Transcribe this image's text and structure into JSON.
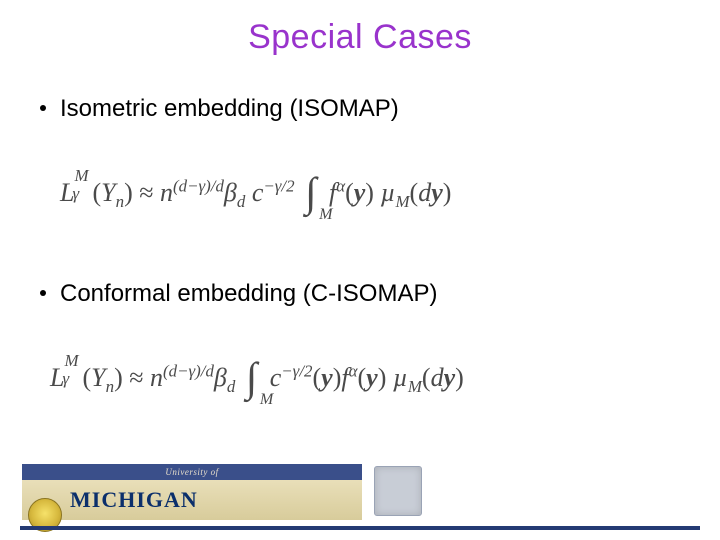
{
  "title": {
    "text": "Special Cases",
    "color": "#9933cc",
    "fontsize": 34
  },
  "bullets": [
    {
      "text": "Isometric embedding (ISOMAP)"
    },
    {
      "text": "Conformal embedding (C-ISOMAP)"
    }
  ],
  "formulas": {
    "f1": {
      "L": "L",
      "gamma": "γ",
      "M": "M",
      "Y": "Y",
      "nsub": "n",
      "approx": "≈",
      "n": "n",
      "exp1": "(d−γ)/d",
      "beta": "β",
      "dsub": "d",
      "c": "c",
      "cexp": "−γ/2",
      "f": "f",
      "alpha": "α",
      "yarg": "y",
      "mu": "µ",
      "Msub": "M",
      "dyarg": "y"
    },
    "f2": {
      "L": "L",
      "gamma": "γ",
      "M": "M",
      "Y": "Y",
      "nsub": "n",
      "approx": "≈",
      "n": "n",
      "exp1": "(d−γ)/d",
      "beta": "β",
      "dsub": "d",
      "c": "c",
      "cexp": "−γ/2",
      "cyarg": "y",
      "f": "f",
      "alpha": "α",
      "fyarg": "y",
      "mu": "µ",
      "Msub": "M",
      "dyarg": "y"
    }
  },
  "footer": {
    "university_of": "University of",
    "wordmark": "MICHIGAN",
    "band_color": "#3a4f8a",
    "wordmark_color": "#0b2f6b",
    "line_color": "#243a73"
  },
  "colors": {
    "background": "#ffffff",
    "text": "#000000",
    "formula": "#4a4a4a"
  }
}
